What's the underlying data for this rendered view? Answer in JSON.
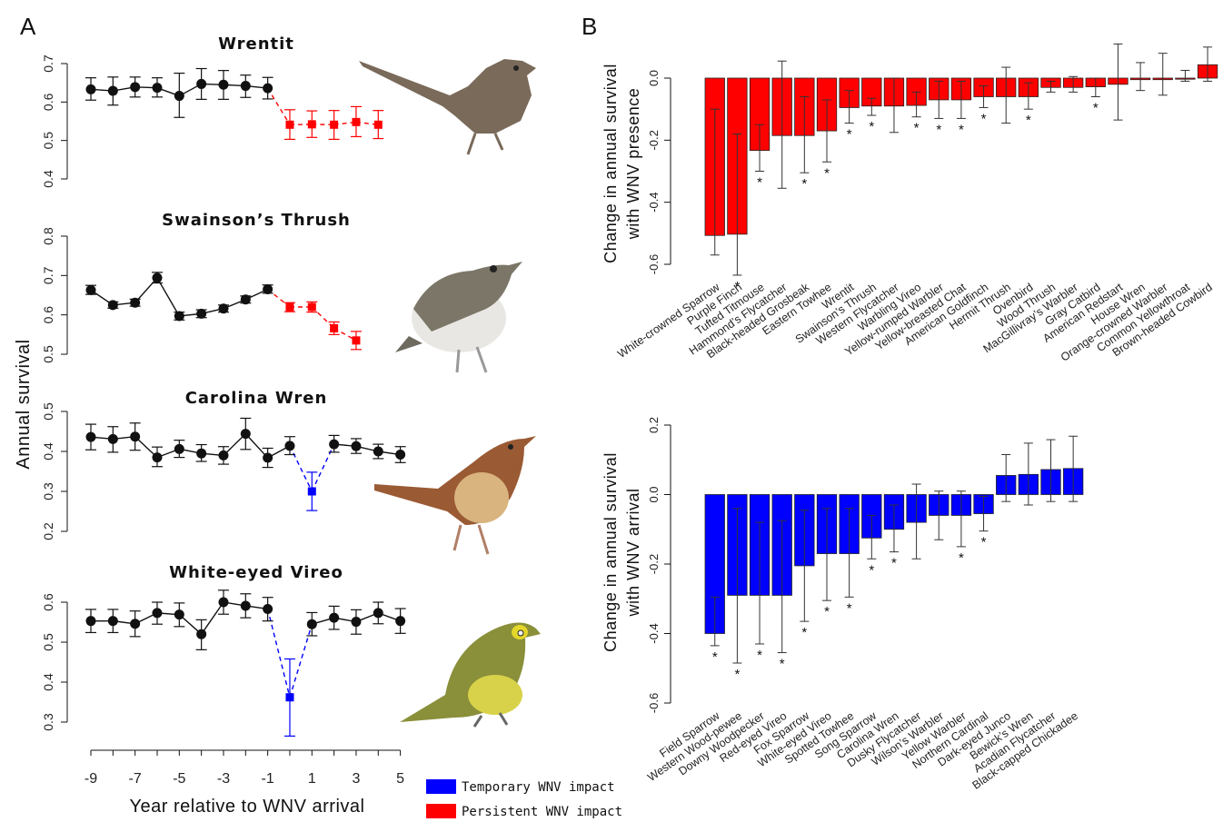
{
  "panel_labels": {
    "a": "A",
    "b": "B"
  },
  "colors": {
    "line": "#111111",
    "temporary": "#0000ff",
    "persistent": "#ff0000",
    "bar_edge": "#222222",
    "error": "#333333"
  },
  "shared_axes": {
    "xlabel": "Year relative to WNV arrival",
    "ylabel": "Annual survival",
    "x_ticks": [
      -9,
      -7,
      -5,
      -3,
      -1,
      1,
      3,
      5
    ]
  },
  "legend": {
    "placement": "bottom-center",
    "items": [
      {
        "label": "Temporary WNV impact",
        "color": "#0000ff"
      },
      {
        "label": "Persistent WNV impact",
        "color": "#ff0000"
      }
    ]
  },
  "chart_data": [
    {
      "type": "line",
      "title": "Wrentit",
      "ylim": [
        0.4,
        0.7
      ],
      "y_ticks": [
        "0.4",
        "0.5",
        "0.6",
        "0.7"
      ],
      "x": [
        -9,
        -8,
        -7,
        -6,
        -5,
        -4,
        -3,
        -2,
        -1,
        0,
        1,
        2,
        3,
        4
      ],
      "y": [
        0.633,
        0.629,
        0.639,
        0.637,
        0.616,
        0.647,
        0.645,
        0.642,
        0.636,
        0.541,
        0.542,
        0.541,
        0.548,
        0.541
      ],
      "ylo": [
        0.605,
        0.592,
        0.613,
        0.613,
        0.56,
        0.607,
        0.607,
        0.612,
        0.608,
        0.503,
        0.508,
        0.503,
        0.51,
        0.505
      ],
      "yhi": [
        0.663,
        0.665,
        0.665,
        0.663,
        0.675,
        0.687,
        0.682,
        0.67,
        0.664,
        0.58,
        0.577,
        0.578,
        0.588,
        0.578
      ],
      "impact_start_index": 9,
      "impact_end_index": 13,
      "impact_type": "persistent"
    },
    {
      "type": "line",
      "title": "Swainson’s Thrush",
      "ylim": [
        0.5,
        0.8
      ],
      "y_ticks": [
        "0.5",
        "0.6",
        "0.7",
        "0.8"
      ],
      "x": [
        -9,
        -8,
        -7,
        -6,
        -5,
        -4,
        -3,
        -2,
        -1,
        0,
        1,
        2,
        3
      ],
      "y": [
        0.663,
        0.625,
        0.631,
        0.694,
        0.597,
        0.603,
        0.616,
        0.639,
        0.665,
        0.62,
        0.62,
        0.566,
        0.535
      ],
      "ylo": [
        0.652,
        0.617,
        0.622,
        0.681,
        0.587,
        0.593,
        0.607,
        0.63,
        0.655,
        0.608,
        0.607,
        0.55,
        0.512
      ],
      "yhi": [
        0.675,
        0.633,
        0.64,
        0.708,
        0.607,
        0.613,
        0.625,
        0.648,
        0.676,
        0.631,
        0.633,
        0.582,
        0.558
      ],
      "impact_start_index": 9,
      "impact_end_index": 12,
      "impact_type": "persistent"
    },
    {
      "type": "line",
      "title": "Carolina Wren",
      "ylim": [
        0.2,
        0.5
      ],
      "y_ticks": [
        "0.2",
        "0.3",
        "0.4",
        "0.5"
      ],
      "x": [
        -9,
        -8,
        -7,
        -6,
        -5,
        -4,
        -3,
        -2,
        -1,
        0,
        1,
        2,
        3,
        4,
        5
      ],
      "y": [
        0.436,
        0.431,
        0.437,
        0.385,
        0.406,
        0.395,
        0.39,
        0.444,
        0.384,
        0.414,
        0.3,
        0.418,
        0.413,
        0.4,
        0.392
      ],
      "ylo": [
        0.404,
        0.398,
        0.403,
        0.362,
        0.385,
        0.375,
        0.368,
        0.405,
        0.36,
        0.392,
        0.252,
        0.398,
        0.395,
        0.382,
        0.372
      ],
      "yhi": [
        0.468,
        0.462,
        0.471,
        0.411,
        0.428,
        0.417,
        0.412,
        0.483,
        0.408,
        0.437,
        0.348,
        0.44,
        0.432,
        0.418,
        0.412
      ],
      "impact_start_index": 10,
      "impact_end_index": 10,
      "impact_type": "temporary"
    },
    {
      "type": "line",
      "title": "White-eyed Vireo",
      "ylim": [
        0.3,
        0.6
      ],
      "y_ticks": [
        "0.3",
        "0.4",
        "0.5",
        "0.6"
      ],
      "x": [
        -9,
        -8,
        -7,
        -6,
        -5,
        -4,
        -3,
        -2,
        -1,
        0,
        1,
        2,
        3,
        4,
        5
      ],
      "y": [
        0.553,
        0.553,
        0.546,
        0.573,
        0.569,
        0.52,
        0.6,
        0.591,
        0.583,
        0.362,
        0.545,
        0.561,
        0.551,
        0.573,
        0.553
      ],
      "ylo": [
        0.524,
        0.524,
        0.514,
        0.545,
        0.539,
        0.481,
        0.57,
        0.561,
        0.553,
        0.265,
        0.516,
        0.532,
        0.52,
        0.546,
        0.522
      ],
      "yhi": [
        0.582,
        0.582,
        0.578,
        0.6,
        0.598,
        0.556,
        0.63,
        0.621,
        0.612,
        0.458,
        0.574,
        0.59,
        0.581,
        0.6,
        0.584
      ],
      "impact_start_index": 9,
      "impact_end_index": 9,
      "impact_type": "temporary"
    },
    {
      "type": "bar",
      "ylabel_line1": "Change in annual survival",
      "ylabel_line2": "with WNV presence",
      "ylim": [
        -0.6,
        0.0
      ],
      "y_ticks": [
        "-0.6",
        "-0.4",
        "-0.2",
        "0.0"
      ],
      "color": "#ff0000",
      "categories": [
        "White-crowned Sparrow",
        "Purple Finch",
        "Tufted Titmouse",
        "Hammond’s Flycatcher",
        "Black-headed Grosbeak",
        "Eastern Towhee",
        "Wrentit",
        "Swainson’s Thrush",
        "Western Flycatcher",
        "Warbling Vireo",
        "Yellow-rumped Warbler",
        "Yellow-breasted Chat",
        "American Goldfinch",
        "Hermit Thrush",
        "Ovenbird",
        "Wood Thrush",
        "MacGillivray’s Warbler",
        "Gray Catbird",
        "American Redstart",
        "House Wren",
        "Orange-crowned Warbler",
        "Common Yellowthroat",
        "Brown-headed Cowbird"
      ],
      "values": [
        -0.507,
        -0.503,
        -0.233,
        -0.185,
        -0.185,
        -0.17,
        -0.095,
        -0.09,
        -0.09,
        -0.088,
        -0.07,
        -0.07,
        -0.06,
        -0.06,
        -0.06,
        -0.03,
        -0.03,
        -0.028,
        -0.02,
        -0.005,
        -0.005,
        0.0,
        0.043
      ],
      "err_lo": [
        -0.57,
        -0.635,
        -0.3,
        -0.355,
        -0.305,
        -0.27,
        -0.145,
        -0.12,
        -0.175,
        -0.125,
        -0.13,
        -0.13,
        -0.095,
        -0.145,
        -0.1,
        -0.045,
        -0.045,
        -0.06,
        -0.135,
        -0.04,
        -0.055,
        -0.01,
        -0.01
      ],
      "err_hi": [
        -0.1,
        -0.18,
        -0.15,
        0.055,
        -0.06,
        -0.07,
        -0.04,
        -0.065,
        0.0,
        -0.045,
        -0.01,
        -0.01,
        -0.025,
        0.035,
        -0.015,
        -0.01,
        0.005,
        0.0,
        0.11,
        0.05,
        0.08,
        0.025,
        0.1
      ],
      "significant": [
        false,
        true,
        true,
        false,
        true,
        true,
        true,
        true,
        false,
        true,
        true,
        true,
        true,
        false,
        true,
        false,
        false,
        true,
        false,
        false,
        false,
        false,
        false
      ]
    },
    {
      "type": "bar",
      "ylabel_line1": "Change in annual survival",
      "ylabel_line2": "with WNV arrival",
      "ylim": [
        -0.6,
        0.2
      ],
      "y_ticks": [
        "-0.6",
        "-0.4",
        "-0.2",
        "0.0",
        "0.2"
      ],
      "color": "#0000ff",
      "categories": [
        "Field Sparrow",
        "Western Wood-pewee",
        "Downy Woodpecker",
        "Red-eyed Vireo",
        "Fox Sparrow",
        "White-eyed Vireo",
        "Spotted Towhee",
        "Song Sparrow",
        "Carolina Wren",
        "Dusky Flycatcher",
        "Wilson’s Warbler",
        "Yellow Warbler",
        "Northern Cardinal",
        "Dark-eyed Junco",
        "Bewick’s Wren",
        "Acadian Flycatcher",
        "Black-capped Chickadee"
      ],
      "values": [
        -0.4,
        -0.29,
        -0.29,
        -0.29,
        -0.205,
        -0.17,
        -0.17,
        -0.125,
        -0.1,
        -0.08,
        -0.06,
        -0.06,
        -0.055,
        0.055,
        0.058,
        0.072,
        0.075
      ],
      "err_lo": [
        -0.435,
        -0.485,
        -0.43,
        -0.455,
        -0.365,
        -0.305,
        -0.295,
        -0.185,
        -0.165,
        -0.185,
        -0.13,
        -0.15,
        -0.105,
        -0.02,
        -0.03,
        -0.02,
        -0.02
      ],
      "err_hi": [
        -0.295,
        -0.04,
        -0.08,
        -0.075,
        -0.045,
        -0.04,
        -0.04,
        -0.06,
        -0.03,
        0.03,
        0.01,
        0.01,
        -0.005,
        0.115,
        0.148,
        0.158,
        0.168
      ],
      "significant": [
        true,
        true,
        true,
        true,
        true,
        true,
        true,
        true,
        true,
        false,
        false,
        true,
        true,
        false,
        false,
        false,
        false
      ]
    }
  ]
}
